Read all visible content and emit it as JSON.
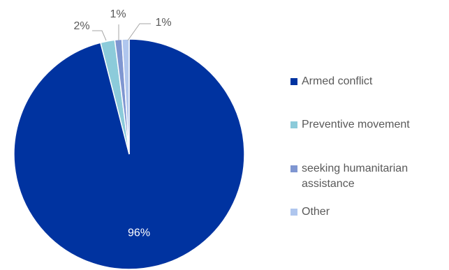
{
  "chart_data": {
    "type": "pie",
    "categories": [
      "Armed conflict",
      "Preventive movement",
      "seeking humanitarian assistance",
      "Other"
    ],
    "values": [
      96,
      2,
      1,
      1
    ],
    "value_labels": [
      "96%",
      "2%",
      "1%",
      "1%"
    ],
    "colors": [
      "#0033A0",
      "#8CCBDA",
      "#7F96D1",
      "#AFC6EE"
    ],
    "legend_placement": "right"
  },
  "legend": {
    "items": [
      {
        "label": "Armed conflict",
        "color": "#0033A0"
      },
      {
        "label": "Preventive movement",
        "color": "#8CCBDA"
      },
      {
        "label": "seeking humanitarian assistance",
        "color": "#7F96D1"
      },
      {
        "label": "Other",
        "color": "#AFC6EE"
      }
    ]
  }
}
